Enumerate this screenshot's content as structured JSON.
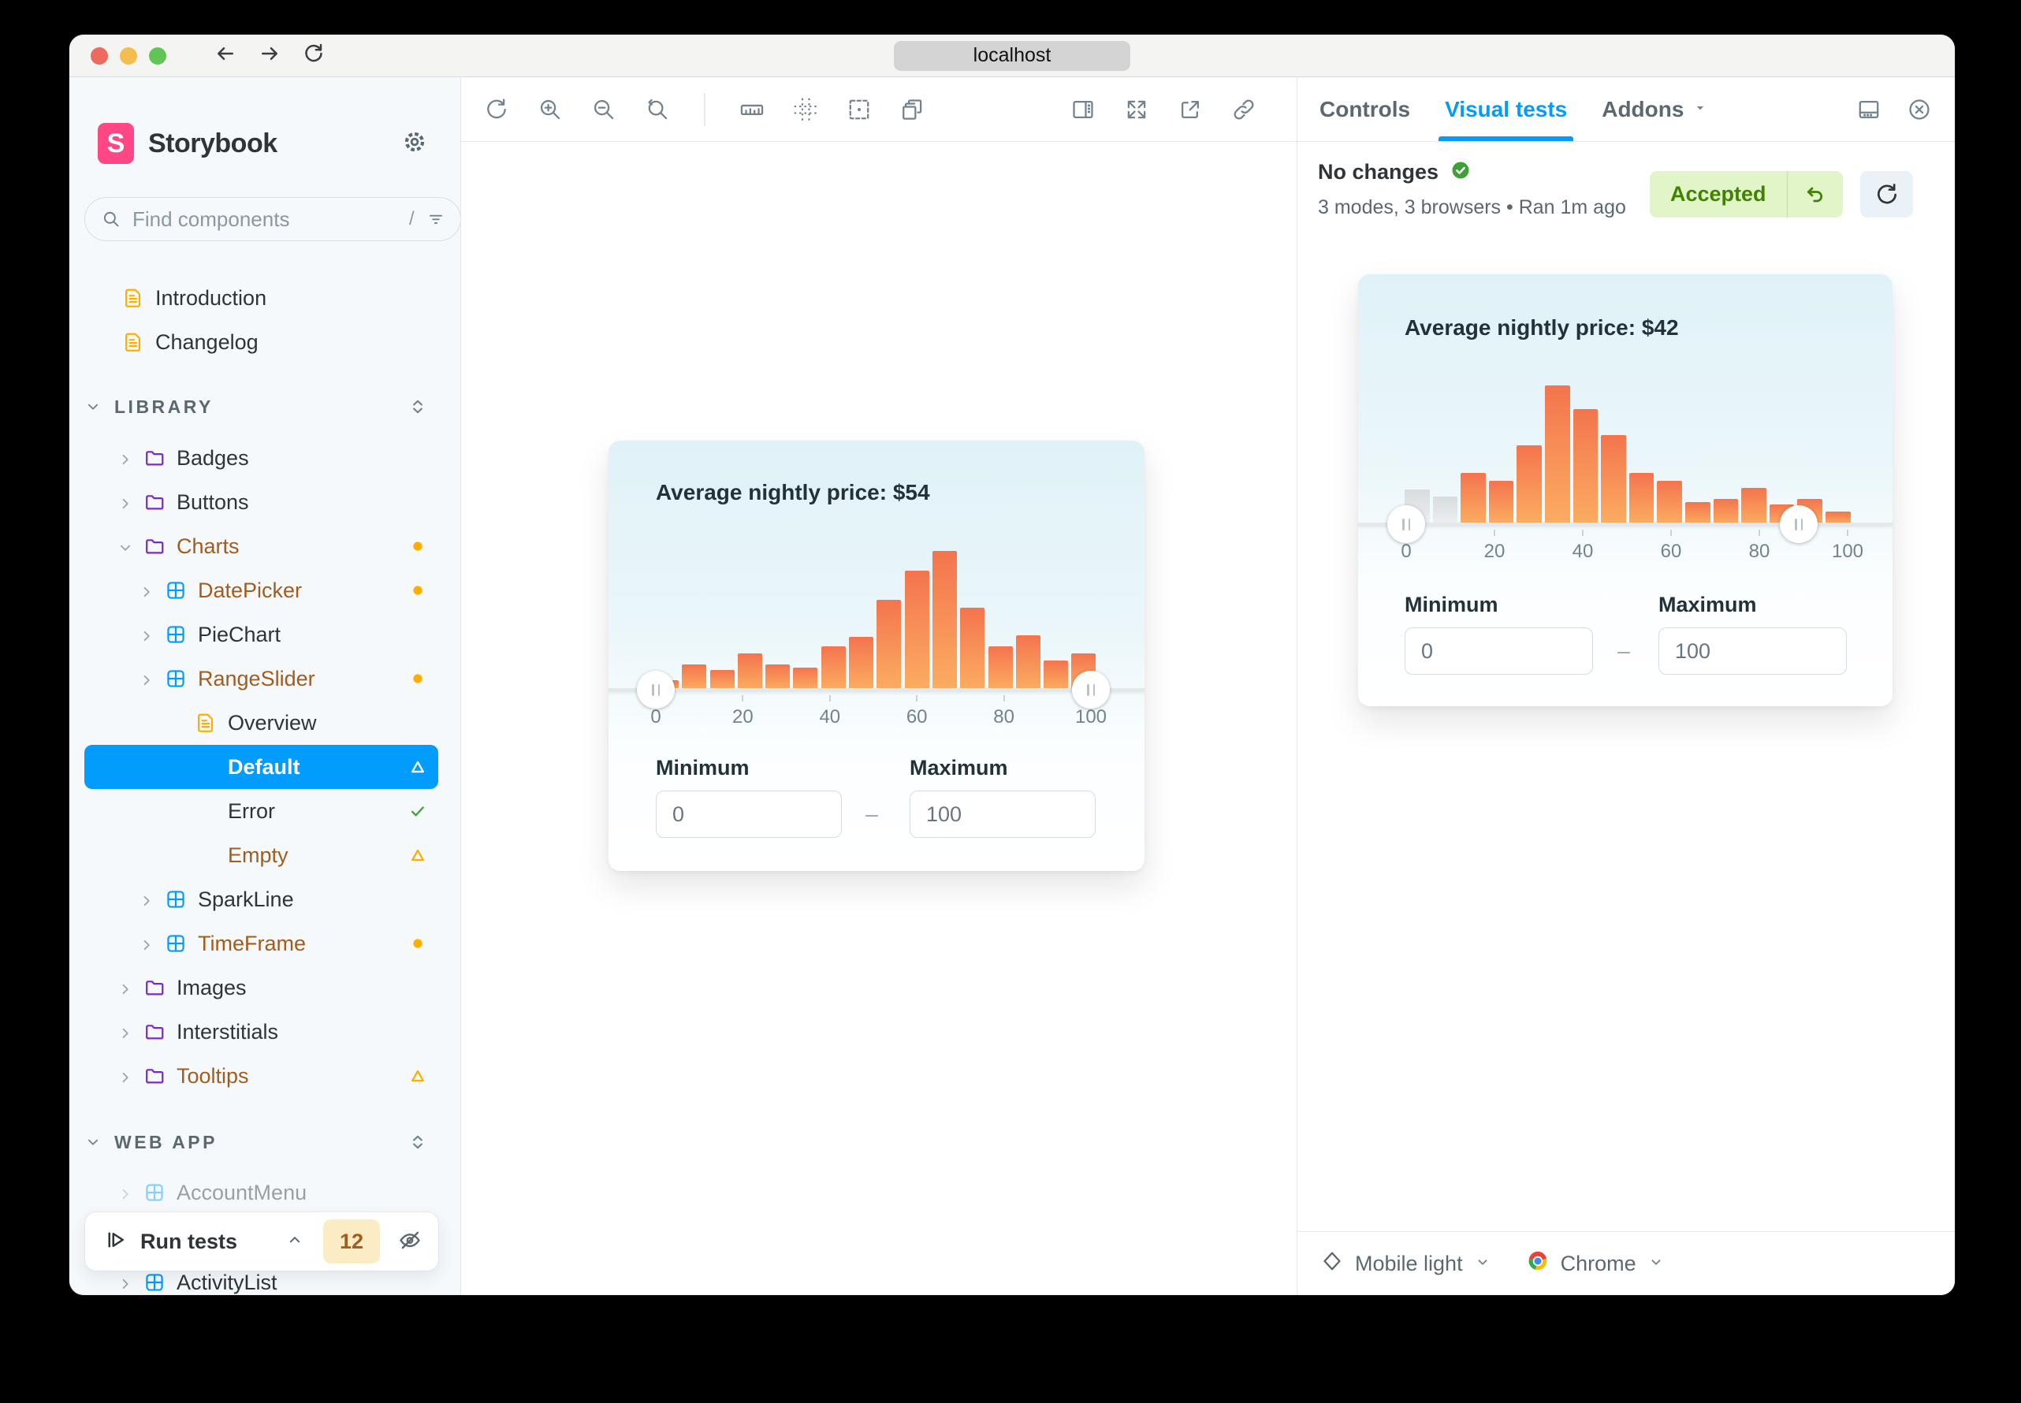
{
  "browser": {
    "url": "localhost"
  },
  "sidebar": {
    "brand": "Storybook",
    "search": {
      "placeholder": "Find components",
      "shortcut": "/"
    },
    "items": [
      {
        "label": "Introduction",
        "kind": "doc",
        "depth": 0,
        "chevron": null,
        "tone": "default",
        "status": null
      },
      {
        "label": "Changelog",
        "kind": "doc",
        "depth": 0,
        "chevron": null,
        "tone": "default",
        "status": null
      },
      {
        "label": "LIBRARY",
        "kind": "section",
        "tone": "default"
      },
      {
        "label": "Badges",
        "kind": "folder",
        "depth": 0,
        "chevron": "right",
        "tone": "default",
        "status": null
      },
      {
        "label": "Buttons",
        "kind": "folder",
        "depth": 0,
        "chevron": "right",
        "tone": "default",
        "status": null
      },
      {
        "label": "Charts",
        "kind": "folder",
        "depth": 0,
        "chevron": "down",
        "tone": "orange",
        "status": "dot"
      },
      {
        "label": "DatePicker",
        "kind": "component",
        "depth": 1,
        "chevron": "right",
        "tone": "orange",
        "status": "dot"
      },
      {
        "label": "PieChart",
        "kind": "component",
        "depth": 1,
        "chevron": "right",
        "tone": "default",
        "status": null
      },
      {
        "label": "RangeSlider",
        "kind": "component",
        "depth": 1,
        "chevron": "right",
        "tone": "orange",
        "status": "dot"
      },
      {
        "label": "Overview",
        "kind": "doc",
        "depth": 2,
        "chevron": null,
        "tone": "default",
        "status": null
      },
      {
        "label": "Default",
        "kind": "story",
        "depth": 2,
        "chevron": null,
        "tone": "selected",
        "status": "triangle-white",
        "selected": true
      },
      {
        "label": "Error",
        "kind": "story",
        "depth": 2,
        "chevron": null,
        "tone": "default",
        "status": "check"
      },
      {
        "label": "Empty",
        "kind": "story",
        "depth": 2,
        "chevron": null,
        "tone": "orange",
        "status": "triangle"
      },
      {
        "label": "SparkLine",
        "kind": "component",
        "depth": 1,
        "chevron": "right",
        "tone": "default",
        "status": null
      },
      {
        "label": "TimeFrame",
        "kind": "component",
        "depth": 1,
        "chevron": "right",
        "tone": "orange",
        "status": "dot"
      },
      {
        "label": "Images",
        "kind": "folder",
        "depth": 0,
        "chevron": "right",
        "tone": "default",
        "status": null
      },
      {
        "label": "Interstitials",
        "kind": "folder",
        "depth": 0,
        "chevron": "right",
        "tone": "default",
        "status": null
      },
      {
        "label": "Tooltips",
        "kind": "folder",
        "depth": 0,
        "chevron": "right",
        "tone": "orange",
        "status": "triangle"
      },
      {
        "label": "WEB APP",
        "kind": "section",
        "tone": "default"
      },
      {
        "label": "AccountMenu",
        "kind": "component",
        "depth": 0,
        "chevron": "right",
        "tone": "muted",
        "status": null
      },
      {
        "label": "ActivityList",
        "kind": "component",
        "depth": 0,
        "chevron": "right",
        "tone": "default",
        "status": null
      }
    ],
    "run_tests": {
      "label": "Run tests",
      "count": "12"
    }
  },
  "toolbar": {
    "left_icons": [
      "remount",
      "zoom-in",
      "zoom-out",
      "zoom-reset",
      "|",
      "ruler",
      "grid",
      "outline",
      "viewports"
    ],
    "right_icons": [
      "panel-toggle",
      "fullscreen",
      "open-external",
      "link"
    ]
  },
  "panel": {
    "tabs": [
      {
        "label": "Controls",
        "active": false,
        "caret": false
      },
      {
        "label": "Visual tests",
        "active": true,
        "caret": false
      },
      {
        "label": "Addons",
        "active": false,
        "caret": true
      }
    ],
    "status": {
      "title": "No changes",
      "meta": "3 modes, 3 browsers • Ran 1m ago",
      "accept_label": "Accepted"
    },
    "footer": {
      "mode": "Mobile light",
      "browser": "Chrome"
    }
  },
  "chart_data": [
    {
      "id": "canvas-story",
      "type": "bar",
      "title": "Average nightly price: $54",
      "xlabel": "",
      "ylabel": "",
      "x_ticks": [
        "0",
        "20",
        "40",
        "60",
        "80",
        "100"
      ],
      "x_range": [
        0,
        100
      ],
      "values_pct_of_max": [
        7,
        18,
        14,
        26,
        18,
        16,
        31,
        38,
        65,
        86,
        100,
        59,
        31,
        39,
        21,
        26
      ],
      "muted_bar_indices": [],
      "slider": {
        "left_value": 0,
        "right_value": 100
      },
      "controls": {
        "min_label": "Minimum",
        "max_label": "Maximum",
        "min_value": "0",
        "max_value": "100",
        "separator": "–"
      },
      "grid": false,
      "legend": false
    },
    {
      "id": "visual-test-snapshot",
      "type": "bar",
      "title": "Average nightly price: $42",
      "xlabel": "",
      "ylabel": "",
      "x_ticks": [
        "0",
        "20",
        "40",
        "60",
        "80",
        "100"
      ],
      "x_range": [
        0,
        100
      ],
      "values_pct_of_max": [
        25,
        20,
        37,
        31,
        57,
        100,
        83,
        64,
        37,
        31,
        16,
        18,
        26,
        14,
        18,
        9
      ],
      "muted_bar_indices": [
        0,
        1
      ],
      "slider": {
        "left_value": 0,
        "right_value": 89
      },
      "controls": {
        "min_label": "Minimum",
        "max_label": "Maximum",
        "min_value": "0",
        "max_value": "100",
        "separator": "–"
      },
      "grid": false,
      "legend": false
    }
  ],
  "colors": {
    "accent": "#029CFD",
    "selected_bg": "#029CFD",
    "orange_text": "#A15C20",
    "gold": "#FFAE00",
    "teal": "#37D5D3",
    "purple": "#7A29C9",
    "success": "#3FA037",
    "bar_top": "#F4744E",
    "bar_bottom": "#FBAD61",
    "bar_muted_top": "#D8DCDF",
    "bar_muted_bottom": "#EDEFF1",
    "accepted_bg": "#E2F5C8",
    "accepted_text": "#3F8300",
    "badge_bg": "#FBECC3"
  }
}
